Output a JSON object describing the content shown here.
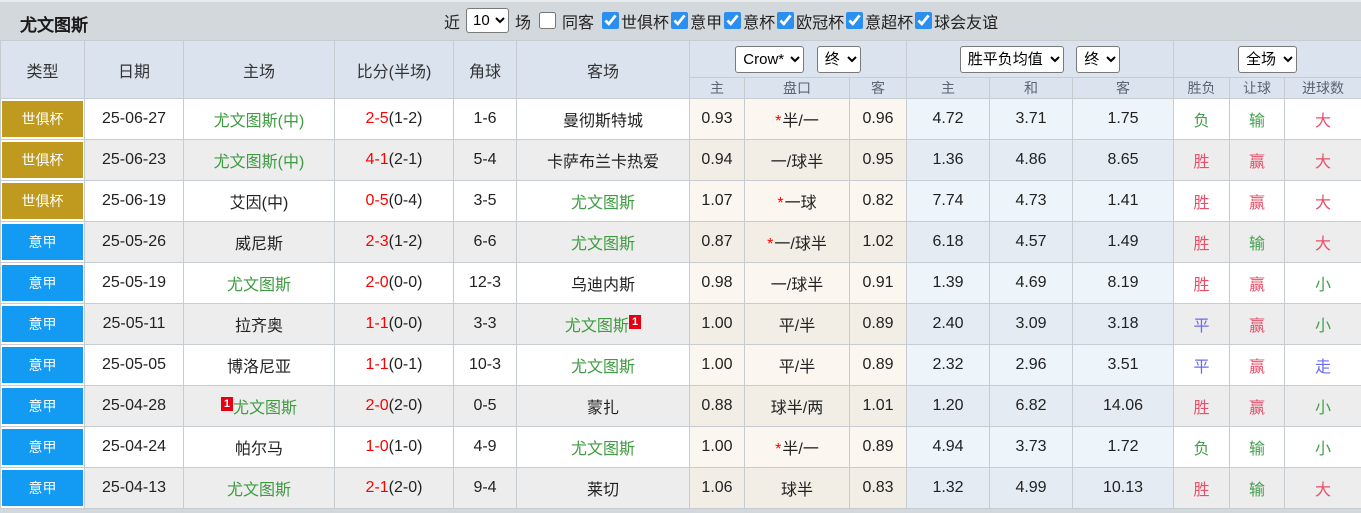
{
  "title": "尤文图斯",
  "filters": {
    "near_label": "近",
    "near_value": "10",
    "games_label": "场",
    "same_away": {
      "label": "同客",
      "checked": false
    },
    "competitions": [
      {
        "label": "世俱杯",
        "checked": true
      },
      {
        "label": "意甲",
        "checked": true
      },
      {
        "label": "意杯",
        "checked": true
      },
      {
        "label": "欧冠杯",
        "checked": true
      },
      {
        "label": "意超杯",
        "checked": true
      },
      {
        "label": "球会友谊",
        "checked": true
      }
    ]
  },
  "table": {
    "left_headers": [
      "类型",
      "日期",
      "主场",
      "比分(半场)",
      "角球",
      "客场"
    ],
    "selects": {
      "bookmaker": "Crow*",
      "final1": "终",
      "wdl": "胜平负均值",
      "final2": "终",
      "period": "全场"
    },
    "sub_headers": [
      "主",
      "盘口",
      "客",
      "主",
      "和",
      "客",
      "胜负",
      "让球",
      "进球数"
    ],
    "rows": [
      {
        "type": "世俱杯",
        "type_color": "gold",
        "date": "25-06-27",
        "home": "尤文图斯(中)",
        "home_green": true,
        "home_badge": "",
        "away": "曼彻斯特城",
        "away_green": false,
        "away_badge": "",
        "score": "2-5",
        "half": "(1-2)",
        "corner": "1-6",
        "h": "0.93",
        "star": true,
        "handicap": "半/一",
        "a": "0.96",
        "avg_h": "4.72",
        "avg_d": "3.71",
        "avg_a": "1.75",
        "result": "负",
        "result_color": "green",
        "hresult": "输",
        "hresult_color": "green",
        "goals": "大",
        "goals_color": "red"
      },
      {
        "type": "世俱杯",
        "type_color": "gold",
        "date": "25-06-23",
        "home": "尤文图斯(中)",
        "home_green": true,
        "home_badge": "",
        "away": "卡萨布兰卡热爱",
        "away_green": false,
        "away_badge": "",
        "score": "4-1",
        "half": "(2-1)",
        "corner": "5-4",
        "h": "0.94",
        "star": false,
        "handicap": "一/球半",
        "a": "0.95",
        "avg_h": "1.36",
        "avg_d": "4.86",
        "avg_a": "8.65",
        "result": "胜",
        "result_color": "red",
        "hresult": "赢",
        "hresult_color": "red",
        "goals": "大",
        "goals_color": "red"
      },
      {
        "type": "世俱杯",
        "type_color": "gold",
        "date": "25-06-19",
        "home": "艾因(中)",
        "home_green": false,
        "home_badge": "",
        "away": "尤文图斯",
        "away_green": true,
        "away_badge": "",
        "score": "0-5",
        "half": "(0-4)",
        "corner": "3-5",
        "h": "1.07",
        "star": true,
        "handicap": "一球",
        "a": "0.82",
        "avg_h": "7.74",
        "avg_d": "4.73",
        "avg_a": "1.41",
        "result": "胜",
        "result_color": "red",
        "hresult": "赢",
        "hresult_color": "red",
        "goals": "大",
        "goals_color": "red"
      },
      {
        "type": "意甲",
        "type_color": "blue",
        "date": "25-05-26",
        "home": "威尼斯",
        "home_green": false,
        "home_badge": "",
        "away": "尤文图斯",
        "away_green": true,
        "away_badge": "",
        "score": "2-3",
        "half": "(1-2)",
        "corner": "6-6",
        "h": "0.87",
        "star": true,
        "handicap": "一/球半",
        "a": "1.02",
        "avg_h": "6.18",
        "avg_d": "4.57",
        "avg_a": "1.49",
        "result": "胜",
        "result_color": "red",
        "hresult": "输",
        "hresult_color": "green",
        "goals": "大",
        "goals_color": "red"
      },
      {
        "type": "意甲",
        "type_color": "blue",
        "date": "25-05-19",
        "home": "尤文图斯",
        "home_green": true,
        "home_badge": "",
        "away": "乌迪内斯",
        "away_green": false,
        "away_badge": "",
        "score": "2-0",
        "half": "(0-0)",
        "corner": "12-3",
        "h": "0.98",
        "star": false,
        "handicap": "一/球半",
        "a": "0.91",
        "avg_h": "1.39",
        "avg_d": "4.69",
        "avg_a": "8.19",
        "result": "胜",
        "result_color": "red",
        "hresult": "赢",
        "hresult_color": "red",
        "goals": "小",
        "goals_color": "green"
      },
      {
        "type": "意甲",
        "type_color": "blue",
        "date": "25-05-11",
        "home": "拉齐奥",
        "home_green": false,
        "home_badge": "",
        "away": "尤文图斯",
        "away_green": true,
        "away_badge": "1",
        "away_badge_pos": "after",
        "score": "1-1",
        "half": "(0-0)",
        "corner": "3-3",
        "h": "1.00",
        "star": false,
        "handicap": "平/半",
        "a": "0.89",
        "avg_h": "2.40",
        "avg_d": "3.09",
        "avg_a": "3.18",
        "result": "平",
        "result_color": "blue",
        "hresult": "赢",
        "hresult_color": "red",
        "goals": "小",
        "goals_color": "green"
      },
      {
        "type": "意甲",
        "type_color": "blue",
        "date": "25-05-05",
        "home": "博洛尼亚",
        "home_green": false,
        "home_badge": "",
        "away": "尤文图斯",
        "away_green": true,
        "away_badge": "",
        "score": "1-1",
        "half": "(0-1)",
        "corner": "10-3",
        "h": "1.00",
        "star": false,
        "handicap": "平/半",
        "a": "0.89",
        "avg_h": "2.32",
        "avg_d": "2.96",
        "avg_a": "3.51",
        "result": "平",
        "result_color": "blue",
        "hresult": "赢",
        "hresult_color": "red",
        "goals": "走",
        "goals_color": "blue"
      },
      {
        "type": "意甲",
        "type_color": "blue",
        "date": "25-04-28",
        "home": "尤文图斯",
        "home_green": true,
        "home_badge": "1",
        "home_badge_pos": "before",
        "away": "蒙扎",
        "away_green": false,
        "away_badge": "",
        "score": "2-0",
        "half": "(2-0)",
        "corner": "0-5",
        "h": "0.88",
        "star": false,
        "handicap": "球半/两",
        "a": "1.01",
        "avg_h": "1.20",
        "avg_d": "6.82",
        "avg_a": "14.06",
        "result": "胜",
        "result_color": "red",
        "hresult": "赢",
        "hresult_color": "red",
        "goals": "小",
        "goals_color": "green"
      },
      {
        "type": "意甲",
        "type_color": "blue",
        "date": "25-04-24",
        "home": "帕尔马",
        "home_green": false,
        "home_badge": "",
        "away": "尤文图斯",
        "away_green": true,
        "away_badge": "",
        "score": "1-0",
        "half": "(1-0)",
        "corner": "4-9",
        "h": "1.00",
        "star": true,
        "handicap": "半/一",
        "a": "0.89",
        "avg_h": "4.94",
        "avg_d": "3.73",
        "avg_a": "1.72",
        "result": "负",
        "result_color": "green",
        "hresult": "输",
        "hresult_color": "green",
        "goals": "小",
        "goals_color": "green"
      },
      {
        "type": "意甲",
        "type_color": "blue",
        "date": "25-04-13",
        "home": "尤文图斯",
        "home_green": true,
        "home_badge": "",
        "away": "莱切",
        "away_green": false,
        "away_badge": "",
        "score": "2-1",
        "half": "(2-0)",
        "corner": "9-4",
        "h": "1.06",
        "star": false,
        "handicap": "球半",
        "a": "0.83",
        "avg_h": "1.32",
        "avg_d": "4.99",
        "avg_a": "10.13",
        "result": "胜",
        "result_color": "red",
        "hresult": "输",
        "hresult_color": "green",
        "goals": "大",
        "goals_color": "red"
      }
    ]
  },
  "colors": {
    "type_gold": "#bf9a1e",
    "type_blue": "#139af2",
    "team_green": "#3e9b41",
    "score_red": "#ff0000",
    "result_red": "#e8506a",
    "result_green": "#43a04c",
    "result_blue": "#6a6af0",
    "checkbox_blue": "#2b8ff0",
    "header_bg": "#dbe4ee",
    "cream_bg": "#fbf7f0",
    "blue_col_bg": "#edf4fa"
  }
}
